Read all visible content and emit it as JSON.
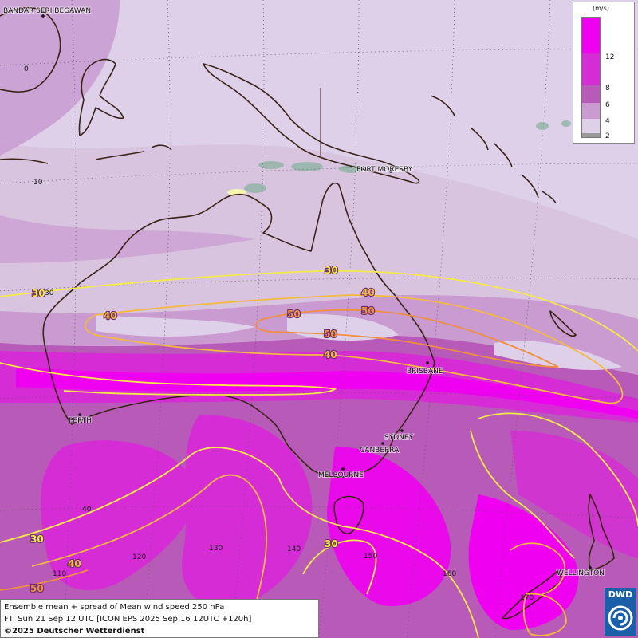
{
  "labels": {
    "cities": [
      {
        "name": "BANDAR SERI BEGAWAN"
      },
      {
        "name": "PORT MORESBY"
      },
      {
        "name": "BRISBANE"
      },
      {
        "name": "PERTH"
      },
      {
        "name": "SYDNEY"
      },
      {
        "name": "CANBERRA"
      },
      {
        "name": "MELBOURNE"
      },
      {
        "name": "WELLINGTON"
      }
    ],
    "latitude": [
      "0",
      "10",
      "30",
      "40"
    ],
    "longitude": [
      "110",
      "120",
      "130",
      "140",
      "150",
      "160",
      "170"
    ]
  },
  "contour_labels": [
    "30",
    "30",
    "40",
    "40",
    "50",
    "50",
    "50",
    "40",
    "30",
    "40",
    "50",
    "30"
  ],
  "legend": {
    "unit": "(m/s)",
    "ticks": [
      "12",
      "8",
      "6",
      "4",
      "2"
    ],
    "colors": [
      "#f000f0",
      "#d62cd6",
      "#b85ab8",
      "#c99bd1",
      "#ddd0e8",
      "#9a9a9a"
    ]
  },
  "info": {
    "line1": "Ensemble mean + spread of Mean wind speed 250 hPa",
    "line2": "FT: Sun 21 Sep 12 UTC [ICON EPS 2025 Sep 16 12UTC +120h]",
    "line3": "©2025 Deutscher Wetterdienst"
  },
  "logo": {
    "text": "DWD"
  },
  "colors": {
    "spread_2_4": "#ddd0e8",
    "spread_4_6": "#c99bd1",
    "spread_6_8": "#b85ab8",
    "spread_8_12": "#d62cd6",
    "spread_12_plus": "#f000f0",
    "contour_30": "#f5e94a",
    "contour_40": "#f5b840",
    "contour_50": "#f08f40",
    "coast": "#3a2418"
  }
}
